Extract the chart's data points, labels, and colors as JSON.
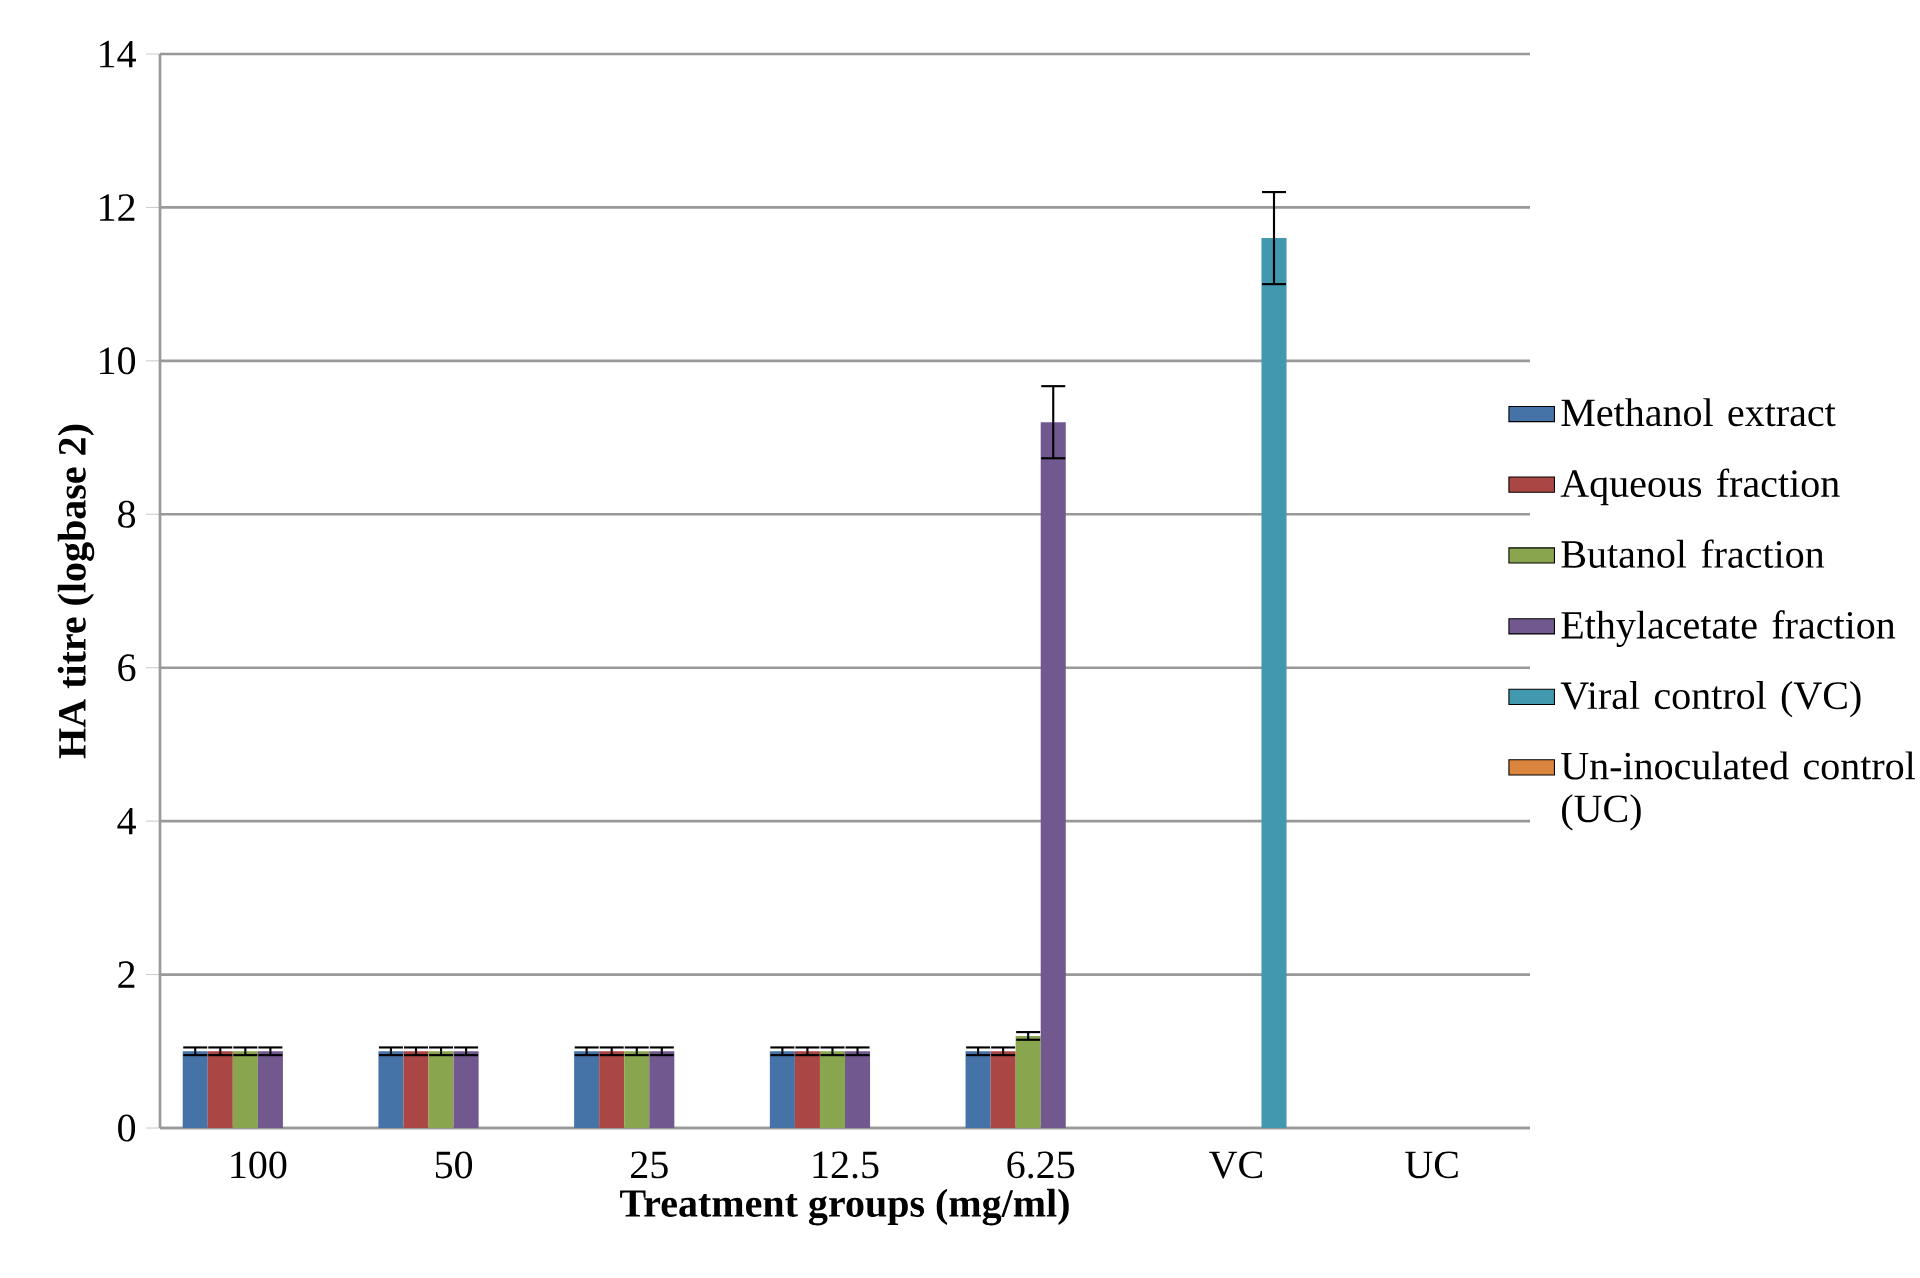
{
  "chart_data": {
    "type": "bar",
    "xlabel": "Treatment groups (mg/ml)",
    "ylabel": "HA titre (logbase 2)",
    "categories": [
      "100",
      "50",
      "25",
      "12.5",
      "6.25",
      "VC",
      "UC"
    ],
    "series": [
      {
        "name": "Methanol extract",
        "color": "#4572a7",
        "values": [
          1,
          1,
          1,
          1,
          1,
          null,
          null
        ],
        "errors": [
          0.05,
          0.05,
          0.05,
          0.05,
          0.05,
          null,
          null
        ]
      },
      {
        "name": "Aqueous fraction",
        "color": "#aa4643",
        "values": [
          1,
          1,
          1,
          1,
          1,
          null,
          null
        ],
        "errors": [
          0.05,
          0.05,
          0.05,
          0.05,
          0.05,
          null,
          null
        ]
      },
      {
        "name": "Butanol fraction",
        "color": "#89a54e",
        "values": [
          1,
          1,
          1,
          1,
          1.2,
          null,
          null
        ],
        "errors": [
          0.05,
          0.05,
          0.05,
          0.05,
          0.05,
          null,
          null
        ]
      },
      {
        "name": "Ethylacetate fraction",
        "color": "#71588f",
        "values": [
          1,
          1,
          1,
          1,
          9.2,
          null,
          null
        ],
        "errors": [
          0.05,
          0.05,
          0.05,
          0.05,
          0.47,
          null,
          null
        ]
      },
      {
        "name": "Viral control (VC)",
        "color": "#4198af",
        "values": [
          null,
          null,
          null,
          null,
          null,
          11.6,
          null
        ],
        "errors": [
          null,
          null,
          null,
          null,
          null,
          0.6,
          null
        ]
      },
      {
        "name": "Un-inoculated control (UC)",
        "color": "#db843d",
        "values": [
          null,
          null,
          null,
          null,
          null,
          null,
          0
        ]
      }
    ],
    "ylim": [
      0,
      14
    ],
    "yticks": [
      0,
      2,
      4,
      6,
      8,
      10,
      12,
      14
    ],
    "grid": "y",
    "legend": "right"
  }
}
